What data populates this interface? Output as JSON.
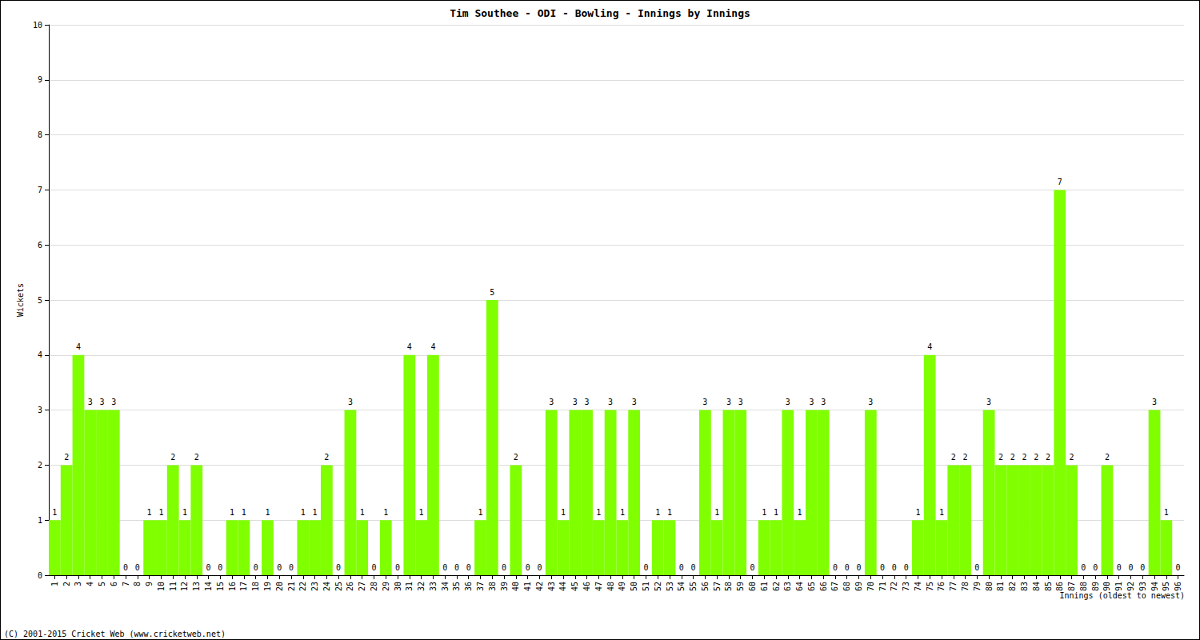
{
  "chart_data": {
    "type": "bar",
    "title": "Tim Southee - ODI - Bowling - Innings by Innings",
    "x_label": "Innings (oldest to newest)",
    "y_label": "Wickets",
    "annotations": [
      "(C) 2001-2015 Cricket Web (www.cricketweb.net)"
    ],
    "categories": [
      "1",
      "2",
      "3",
      "4",
      "5",
      "6",
      "7",
      "8",
      "9",
      "10",
      "11",
      "12",
      "13",
      "14",
      "15",
      "16",
      "17",
      "18",
      "19",
      "20",
      "21",
      "22",
      "23",
      "24",
      "25",
      "26",
      "27",
      "28",
      "29",
      "30",
      "31",
      "32",
      "33",
      "34",
      "35",
      "36",
      "37",
      "38",
      "39",
      "40",
      "41",
      "42",
      "43",
      "44",
      "45",
      "46",
      "47",
      "48",
      "49",
      "50",
      "51",
      "52",
      "53",
      "54",
      "55",
      "56",
      "57",
      "58",
      "59",
      "60",
      "61",
      "62",
      "63",
      "64",
      "65",
      "66",
      "67",
      "68",
      "69",
      "70",
      "71",
      "72",
      "73",
      "74",
      "75",
      "76",
      "77",
      "78",
      "79",
      "80",
      "81",
      "82",
      "83",
      "84",
      "85",
      "86",
      "87",
      "88",
      "89",
      "90",
      "91",
      "92",
      "93",
      "94",
      "95",
      "96"
    ],
    "values": [
      1,
      2,
      4,
      3,
      3,
      3,
      0,
      0,
      1,
      1,
      2,
      1,
      2,
      0,
      0,
      1,
      1,
      0,
      1,
      0,
      0,
      1,
      1,
      2,
      0,
      3,
      1,
      0,
      1,
      0,
      4,
      1,
      4,
      0,
      0,
      0,
      1,
      5,
      0,
      2,
      0,
      0,
      3,
      1,
      3,
      3,
      1,
      3,
      1,
      3,
      0,
      1,
      1,
      0,
      0,
      3,
      1,
      3,
      3,
      0,
      1,
      1,
      3,
      1,
      3,
      3,
      0,
      0,
      0,
      3,
      0,
      0,
      0,
      1,
      4,
      1,
      2,
      2,
      0,
      3,
      2,
      2,
      2,
      2,
      2,
      7,
      2,
      0,
      0,
      2,
      0,
      0,
      0,
      3,
      1,
      0
    ],
    "color": "#80ff00",
    "ylim": [
      0,
      10
    ],
    "yticks": [
      0,
      1,
      2,
      3,
      4,
      5,
      6,
      7,
      8,
      9,
      10
    ],
    "grid": true,
    "data_labels": true
  }
}
